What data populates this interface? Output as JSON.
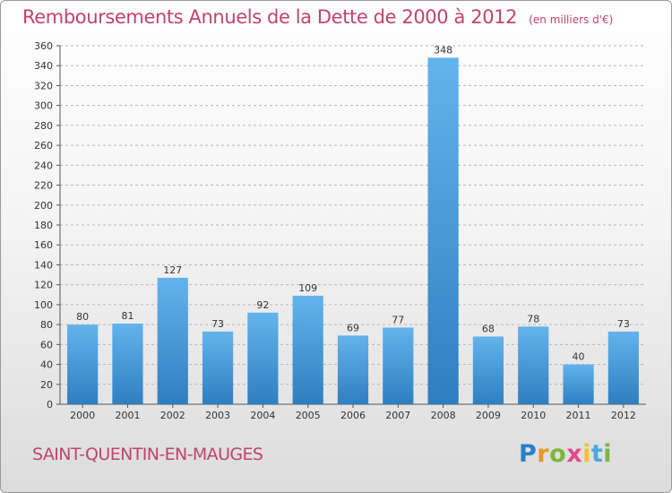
{
  "header": {
    "title": "Remboursements Annuels de la Dette de 2000 à 2012",
    "unit": "(en milliers d'€)"
  },
  "footer": {
    "location": "SAINT-QUENTIN-EN-MAUGES",
    "logo": {
      "letters": [
        "P",
        "r",
        "o",
        "x",
        "i",
        "t",
        "i"
      ],
      "colors": [
        "#2a7fc8",
        "#e8962a",
        "#7cb63c",
        "#e04a8a",
        "#f2c12e",
        "#49a8e0",
        "#7cb63c"
      ]
    }
  },
  "colors": {
    "bar_light": "#63b3ec",
    "bar_dark": "#2f7fc0",
    "accent": "#c0446c",
    "grid": "#b8b8b8"
  },
  "chart_data": {
    "type": "bar",
    "title": "Remboursements Annuels de la Dette de 2000 à 2012",
    "xlabel": "",
    "ylabel": "",
    "categories": [
      "2000",
      "2001",
      "2002",
      "2003",
      "2004",
      "2005",
      "2006",
      "2007",
      "2008",
      "2009",
      "2010",
      "2011",
      "2012"
    ],
    "values": [
      80,
      81,
      127,
      73,
      92,
      109,
      69,
      77,
      348,
      68,
      78,
      40,
      73
    ],
    "ylim": [
      0,
      360
    ],
    "yticks": [
      0,
      20,
      40,
      60,
      80,
      100,
      120,
      140,
      160,
      180,
      200,
      220,
      240,
      260,
      280,
      300,
      320,
      340,
      360
    ],
    "grid": true,
    "data_labels": true
  }
}
